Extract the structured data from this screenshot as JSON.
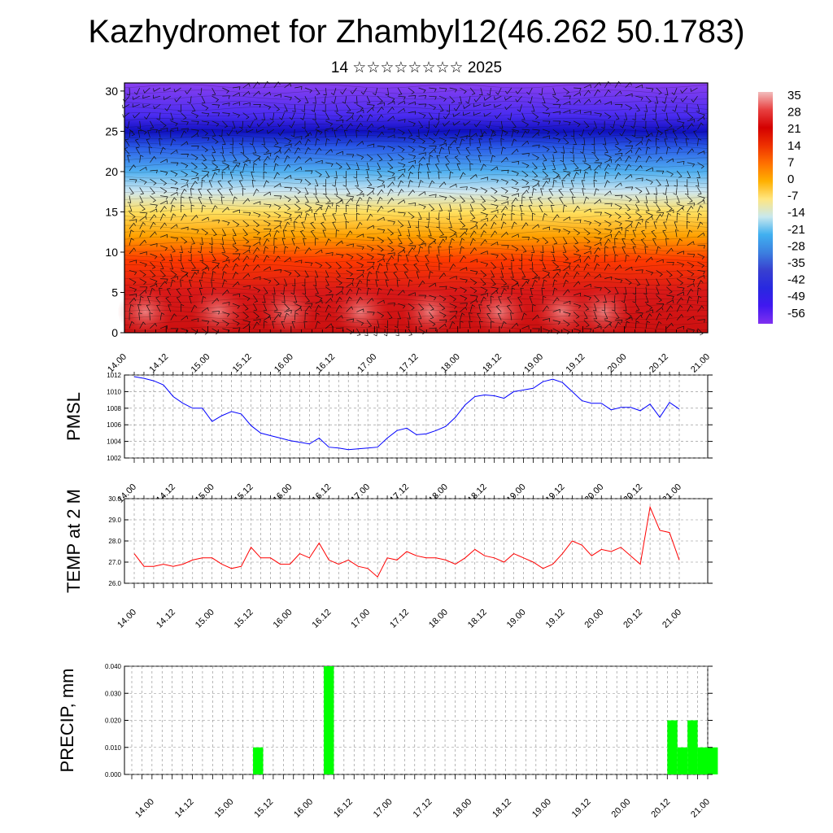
{
  "header": {
    "title": "Kazhydromet for Zhambyl12(46.262 50.1783)",
    "subtitle": "14 ☆☆☆☆☆☆☆☆ 2025"
  },
  "chart_data": [
    {
      "type": "heatmap",
      "variable": "temperature-height cross-section with wind barbs",
      "x_tick_labels": [
        "14.00",
        "14.12",
        "15.00",
        "15.12",
        "16.00",
        "16.12",
        "17.00",
        "17.12",
        "18.00",
        "18.12",
        "19.00",
        "19.12",
        "20.00",
        "20.12",
        "21.00"
      ],
      "y_ticks": [
        0,
        5,
        10,
        15,
        20,
        25,
        30
      ],
      "ylim": [
        0,
        31
      ],
      "colorbar": {
        "labels": [
          "35",
          "28",
          "21",
          "14",
          "7",
          "0",
          "-7",
          "-14",
          "-21",
          "-28",
          "-35",
          "-42",
          "-49",
          "-56"
        ],
        "colors": [
          "#f2bdbd",
          "#e84040",
          "#d40000",
          "#ee3000",
          "#ff7000",
          "#ffb000",
          "#ffe680",
          "#c8e8ee",
          "#40b0f0",
          "#3c80e0",
          "#3840d0",
          "#2828e0",
          "#4018f0",
          "#8030f0"
        ]
      },
      "bands": [
        {
          "h": 0,
          "color": "#cc1010"
        },
        {
          "h": 5,
          "color": "#d81818"
        },
        {
          "h": 9,
          "color": "#ff3a00"
        },
        {
          "h": 12,
          "color": "#ffa000"
        },
        {
          "h": 15,
          "color": "#ffe060"
        },
        {
          "h": 17.5,
          "color": "#cfe7f0"
        },
        {
          "h": 20,
          "color": "#50b0f0"
        },
        {
          "h": 23,
          "color": "#2a5ce8"
        },
        {
          "h": 25,
          "color": "#1010c0"
        },
        {
          "h": 27,
          "color": "#4a2cf0"
        },
        {
          "h": 31,
          "color": "#8a40f0"
        }
      ],
      "surface_warm_cells_x": [
        6,
        27,
        47,
        68,
        88,
        108,
        126,
        138
      ]
    },
    {
      "type": "line",
      "ylabel": "PMSL",
      "x_tick_labels": [
        "14.00",
        "14.12",
        "15.00",
        "15.12",
        "16.00",
        "16.12",
        "17.00",
        "17.12",
        "18.00",
        "18.12",
        "19.00",
        "19.12",
        "20.00",
        "20.12",
        "21.00"
      ],
      "y_ticks": [
        1002,
        1004,
        1006,
        1008,
        1010,
        1012
      ],
      "ylim": [
        1002,
        1012
      ],
      "series": [
        {
          "color": "#0000ff",
          "x": [
            0,
            3,
            6,
            9,
            12,
            15,
            18,
            21,
            24,
            27,
            30,
            33,
            36,
            39,
            42,
            45,
            48,
            51,
            54,
            57,
            60,
            63,
            66,
            69,
            72,
            75,
            78,
            81,
            84,
            87,
            90,
            93,
            96,
            99,
            102,
            105,
            108,
            111,
            114,
            117,
            120,
            123,
            126,
            129,
            132,
            135,
            138,
            141,
            144,
            147,
            150,
            153,
            156,
            159,
            162,
            165,
            168
          ],
          "values": [
            1011.8,
            1011.6,
            1011.3,
            1010.8,
            1009.4,
            1008.6,
            1008.0,
            1008.0,
            1006.4,
            1007.1,
            1007.6,
            1007.3,
            1005.9,
            1005.0,
            1004.7,
            1004.4,
            1004.1,
            1003.9,
            1003.7,
            1004.4,
            1003.3,
            1003.2,
            1003.0,
            1003.1,
            1003.2,
            1003.3,
            1004.4,
            1005.3,
            1005.6,
            1004.8,
            1004.9,
            1005.3,
            1005.8,
            1006.9,
            1008.4,
            1009.4,
            1009.6,
            1009.5,
            1009.2,
            1010.0,
            1010.2,
            1010.4,
            1011.2,
            1011.5,
            1011.1,
            1010.0,
            1008.9,
            1008.6,
            1008.6,
            1007.8,
            1008.1,
            1008.1,
            1007.7,
            1008.5,
            1006.9,
            1008.7,
            1007.9
          ]
        }
      ]
    },
    {
      "type": "line",
      "ylabel": "TEMP at 2 M",
      "x_tick_labels": [
        "14.00",
        "14.12",
        "15.00",
        "15.12",
        "16.00",
        "16.12",
        "17.00",
        "17.12",
        "18.00",
        "18.12",
        "19.00",
        "19.12",
        "20.00",
        "20.12",
        "21.00"
      ],
      "y_ticks": [
        "26.0",
        "27.0",
        "28.0",
        "29.0",
        "30.0"
      ],
      "ylim": [
        26,
        30
      ],
      "series": [
        {
          "color": "#ff0000",
          "x": [
            0,
            3,
            6,
            9,
            12,
            15,
            18,
            21,
            24,
            27,
            30,
            33,
            36,
            39,
            42,
            45,
            48,
            51,
            54,
            57,
            60,
            63,
            66,
            69,
            72,
            75,
            78,
            81,
            84,
            87,
            90,
            93,
            96,
            99,
            102,
            105,
            108,
            111,
            114,
            117,
            120,
            123,
            126,
            129,
            132,
            135,
            138,
            141,
            144,
            147,
            150,
            153,
            156,
            159,
            162,
            165,
            168
          ],
          "values": [
            27.4,
            26.8,
            26.8,
            26.9,
            26.8,
            26.9,
            27.1,
            27.2,
            27.2,
            26.9,
            26.7,
            26.8,
            27.7,
            27.2,
            27.2,
            26.9,
            26.9,
            27.4,
            27.2,
            27.9,
            27.1,
            26.9,
            27.1,
            26.8,
            26.7,
            26.3,
            27.2,
            27.1,
            27.5,
            27.3,
            27.2,
            27.2,
            27.1,
            26.9,
            27.2,
            27.6,
            27.3,
            27.2,
            27.0,
            27.4,
            27.2,
            27.0,
            26.7,
            26.9,
            27.4,
            28.0,
            27.8,
            27.3,
            27.6,
            27.5,
            27.7,
            27.3,
            26.9,
            29.6,
            28.5,
            28.4,
            27.1
          ]
        }
      ]
    },
    {
      "type": "bar",
      "ylabel": "PRECIP, mm",
      "x_tick_labels": [
        "14.00",
        "14.12",
        "15.00",
        "15.12",
        "16.00",
        "16.12",
        "17.00",
        "17.12",
        "18.00",
        "18.12",
        "19.00",
        "19.12",
        "20.00",
        "20.12",
        "21.00"
      ],
      "y_ticks": [
        "0.000",
        "0.010",
        "0.020",
        "0.030",
        "0.040"
      ],
      "ylim": [
        0,
        0.04
      ],
      "color": "#00ff00",
      "bars": [
        {
          "x0": 36,
          "x1": 39,
          "value": 0.01
        },
        {
          "x0": 57,
          "x1": 60,
          "value": 0.04
        },
        {
          "x0": 159,
          "x1": 162,
          "value": 0.02
        },
        {
          "x0": 162,
          "x1": 165,
          "value": 0.01
        },
        {
          "x0": 165,
          "x1": 168,
          "value": 0.02
        },
        {
          "x0": 168,
          "x1": 171,
          "value": 0.01
        },
        {
          "x0": 171,
          "x1": 174,
          "value": 0.01
        }
      ]
    }
  ]
}
